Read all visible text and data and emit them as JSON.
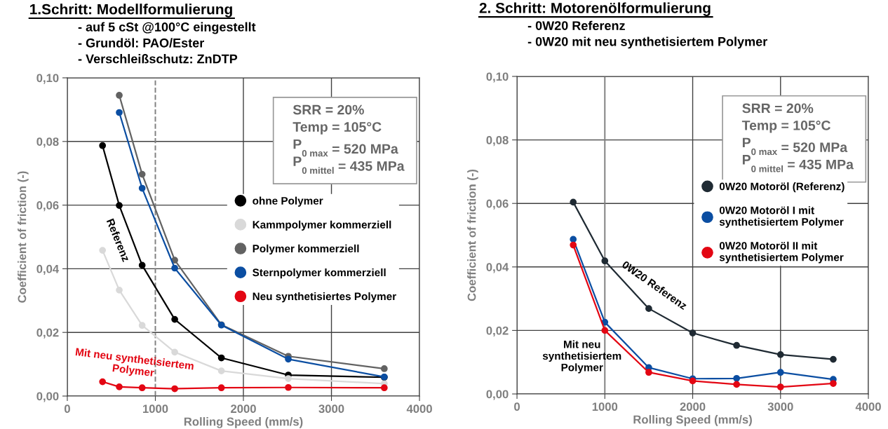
{
  "chart_data": [
    {
      "type": "line",
      "title": "1.Schritt: Modellformulierung",
      "subtitle": "- auf 5 cSt @100°C eingestellt\n- Grundöl: PAO/Ester\n- Verschleißschutz: ZnDTP",
      "xlabel": "Rolling Speed (mm/s)",
      "ylabel": "Coefficient of friction (-)",
      "x": [
        400,
        590,
        850,
        1220,
        1750,
        2510,
        3600
      ],
      "series": [
        {
          "name": "ohne Polymer",
          "color": "#000000",
          "values": [
            0.0787,
            0.0599,
            0.0411,
            0.0241,
            0.012,
            0.0066,
            0.0059
          ]
        },
        {
          "name": "Kammpolymer kommerziell",
          "color": "#d9d9d9",
          "values": [
            0.0458,
            0.0333,
            0.0222,
            0.0138,
            0.0079,
            0.0055,
            0.0039
          ]
        },
        {
          "name": "Polymer kommerziell",
          "color": "#626262",
          "values": [
            null,
            0.0945,
            0.0697,
            0.0427,
            0.0224,
            0.0125,
            0.0086
          ]
        },
        {
          "name": "Sternpolymer kommerziell",
          "color": "#0b4ea2",
          "values": [
            null,
            0.0891,
            0.0653,
            0.0402,
            0.0223,
            0.0116,
            0.006
          ]
        },
        {
          "name": "Neu synthetisiertes Polymer",
          "color": "#e30613",
          "values": [
            0.0045,
            0.0029,
            0.0026,
            0.0023,
            0.0026,
            0.0027,
            0.0026
          ]
        }
      ],
      "xlim": [
        0,
        4000
      ],
      "xticks": [
        0,
        1000,
        2000,
        3000,
        4000
      ],
      "ylim": [
        0,
        0.1
      ],
      "yticks": [
        {
          "value": 0,
          "label": "0,00"
        },
        {
          "value": 0.02,
          "label": "0,02"
        },
        {
          "value": 0.04,
          "label": "0,04"
        },
        {
          "value": 0.06,
          "label": "0,06"
        },
        {
          "value": 0.08,
          "label": "0,08"
        },
        {
          "value": 0.1,
          "label": "0,10"
        }
      ],
      "grid": true,
      "marker": "circle",
      "line_style": "solid",
      "legend": "right",
      "ref_lines": [
        {
          "axis": "x",
          "value": 1000,
          "label": null,
          "color": "#808080",
          "line_style": "dashed"
        }
      ],
      "annotations": [
        "SRR = 20%\nTemp = 105°C\nP$_{0 max}$ = 520 MPa\nP$_{0 mittel}$ = 435 MPa",
        "Referenz",
        "Mit neu synthetisiertem\nPolymer"
      ]
    },
    {
      "type": "line",
      "title": "2. Schritt: Motorenölformulierung",
      "subtitle": "- 0W20 Referenz\n- 0W20 mit neu synthetisiertem Polymer",
      "xlabel": "Rolling Speed (mm/s)",
      "ylabel": "Coefficient of friction (-)",
      "x": [
        640,
        1000,
        1500,
        2000,
        2500,
        3000,
        3600
      ],
      "series": [
        {
          "name": "0W20 Motoröl (Referenz)",
          "color": "#1f2a33",
          "values": [
            0.0604,
            0.0419,
            0.0269,
            0.0192,
            0.0153,
            0.0124,
            0.0109
          ]
        },
        {
          "name": "0W20 Motoröl I mit\nsynthetisiertem Polymer",
          "color": "#0b4ea2",
          "values": [
            0.0487,
            0.0226,
            0.0083,
            0.0048,
            0.0049,
            0.0068,
            0.0046
          ]
        },
        {
          "name": "0W20 Motoröl II mit\nsynthetisiertem Polymer",
          "color": "#e30613",
          "values": [
            0.0469,
            0.02,
            0.0068,
            0.0041,
            0.003,
            0.0022,
            0.0033
          ]
        }
      ],
      "xlim": [
        0,
        4000
      ],
      "xticks": [
        0,
        1000,
        2000,
        3000,
        4000
      ],
      "ylim": [
        0,
        0.1
      ],
      "yticks": [
        {
          "value": 0,
          "label": "0,00"
        },
        {
          "value": 0.02,
          "label": "0,02"
        },
        {
          "value": 0.04,
          "label": "0,04"
        },
        {
          "value": 0.06,
          "label": "0,06"
        },
        {
          "value": 0.08,
          "label": "0,08"
        },
        {
          "value": 0.1,
          "label": "0,10"
        }
      ],
      "grid": true,
      "marker": "circle",
      "line_style": "solid",
      "legend": "right",
      "ref_lines": [
        {
          "axis": "x",
          "value": 1000,
          "label": null,
          "color": "#808080",
          "line_style": "solid"
        }
      ],
      "annotations": [
        "SRR = 20%\nTemp = 105°C\nP$_{0 max}$ = 520 MPa\nP$_{0 mittel}$ = 435 MPa",
        "0W20 Referenz",
        "Mit neu\nsynthetisiertem\nPolymer"
      ]
    }
  ]
}
